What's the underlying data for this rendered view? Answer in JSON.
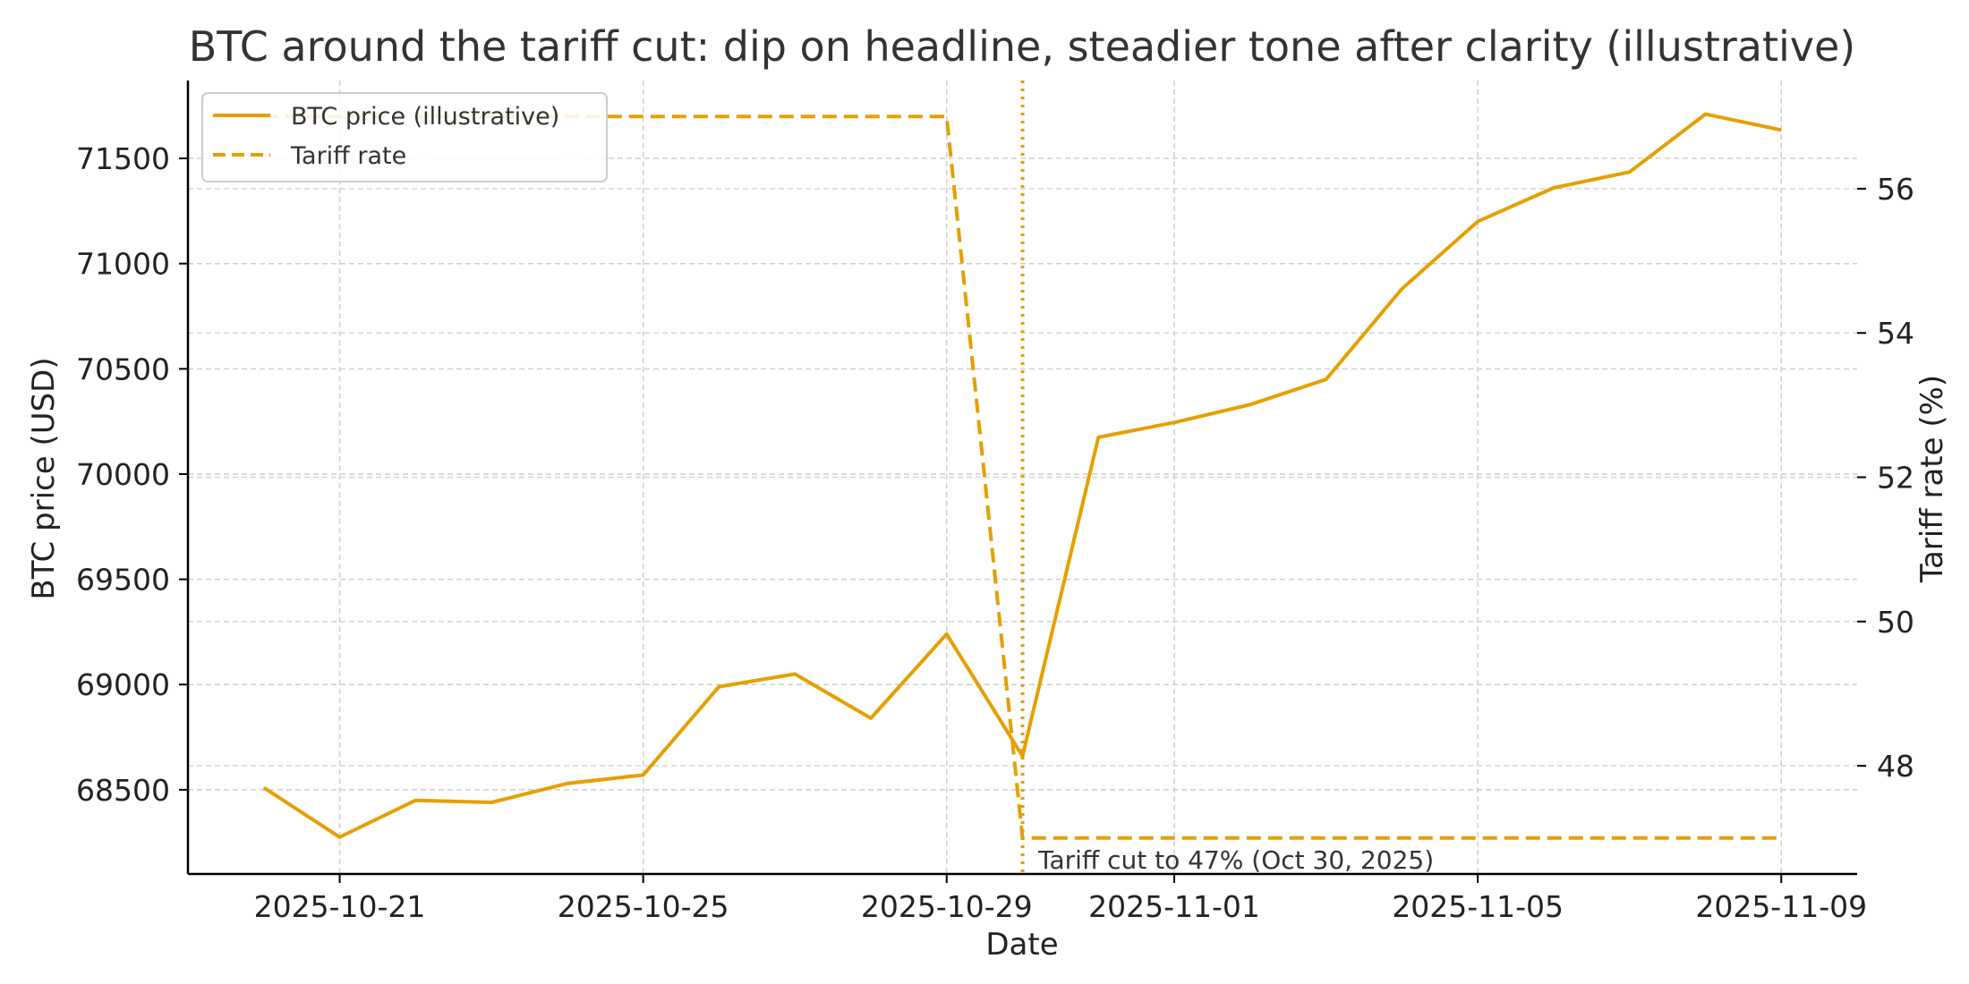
{
  "chart_data": {
    "type": "line",
    "title": "BTC around the tariff cut: dip on headline, steadier tone after clarity (illustrative)",
    "xlabel": "Date",
    "ylabel_left": "BTC price (USD)",
    "ylabel_right": "Tariff rate (%)",
    "x_ticks": [
      "2025-10-21",
      "2025-10-25",
      "2025-10-29",
      "2025-11-01",
      "2025-11-05",
      "2025-11-09"
    ],
    "y_left_ticks": [
      "68500",
      "69000",
      "69500",
      "70000",
      "70500",
      "71000",
      "71500"
    ],
    "y_right_ticks": [
      "48",
      "50",
      "52",
      "54",
      "56"
    ],
    "y_left_range": [
      68100,
      71870
    ],
    "y_right_range": [
      46.5,
      57.5
    ],
    "x_range": [
      "2025-10-19",
      "2025-11-10"
    ],
    "grid": true,
    "legend_position": "top-left",
    "series": [
      {
        "name": "BTC price (illustrative)",
        "axis": "left",
        "style": "solid",
        "color": "#E69F00",
        "x": [
          "2025-10-20",
          "2025-10-21",
          "2025-10-22",
          "2025-10-23",
          "2025-10-24",
          "2025-10-25",
          "2025-10-26",
          "2025-10-27",
          "2025-10-28",
          "2025-10-29",
          "2025-10-30",
          "2025-10-31",
          "2025-11-01",
          "2025-11-02",
          "2025-11-03",
          "2025-11-04",
          "2025-11-05",
          "2025-11-06",
          "2025-11-07",
          "2025-11-08",
          "2025-11-09"
        ],
        "values": [
          68510,
          68275,
          68450,
          68440,
          68530,
          68570,
          68990,
          69050,
          68840,
          69240,
          68660,
          70175,
          70245,
          70330,
          70450,
          70880,
          71200,
          71360,
          71435,
          71710,
          71635
        ]
      },
      {
        "name": "Tariff rate",
        "axis": "right",
        "style": "dashed",
        "color": "#E69F00",
        "x": [
          "2025-10-20",
          "2025-10-29",
          "2025-10-30",
          "2025-11-09"
        ],
        "values": [
          57,
          57,
          47,
          47
        ]
      }
    ],
    "annotations": [
      {
        "text": "Tariff cut to 47% (Oct 30, 2025)",
        "x": "2025-10-30",
        "style": "dotted-vertical-line",
        "color": "#E69F00"
      }
    ]
  }
}
